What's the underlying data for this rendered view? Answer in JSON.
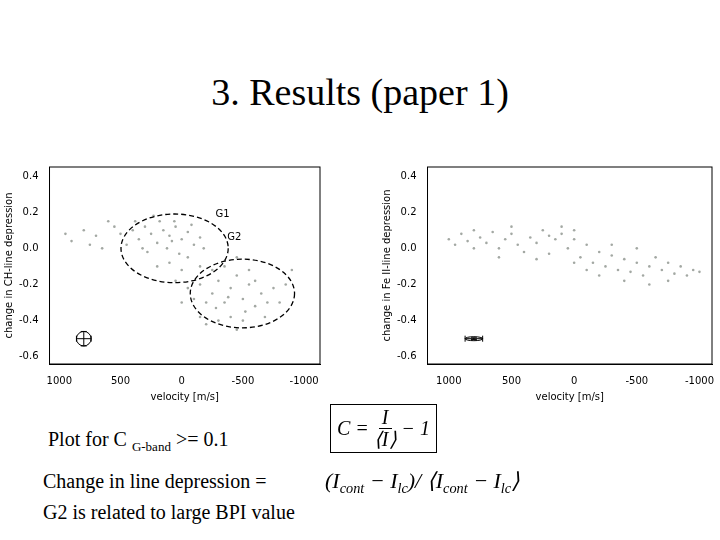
{
  "title": "3. Results (paper 1)",
  "chart_data": [
    {
      "type": "scatter",
      "x_label": "velocity [m/s]",
      "y_label": "change in CH-line depression",
      "color": "#a3a8a3",
      "marker": "dot",
      "grid": false,
      "xlim": [
        1080,
        -1130
      ],
      "ylim": [
        -0.64,
        0.45
      ],
      "xticks": [
        1000,
        500,
        0,
        -500,
        -1000
      ],
      "yticks": [
        -0.6,
        -0.4,
        -0.2,
        {
          "value": 0,
          "label": "0.0"
        },
        0.2,
        0.4
      ],
      "x": [
        400,
        350,
        300,
        250,
        200,
        150,
        100,
        50,
        0,
        -50,
        -100,
        -150,
        450,
        380,
        280,
        180,
        120,
        60,
        20,
        -80,
        500,
        550,
        230,
        320,
        -180,
        80,
        700,
        800,
        900,
        950,
        650,
        750,
        600,
        100,
        0,
        -50,
        200,
        -150,
        50,
        -400,
        -350,
        -450,
        -300,
        -500,
        -250,
        -550,
        -600,
        -200,
        -400,
        -300,
        -500,
        -650,
        -700,
        -150,
        -100,
        -350,
        -450,
        -550,
        -250,
        -600,
        -750,
        -800,
        -850,
        -200,
        -450,
        -380,
        -520,
        -280,
        -680,
        -150,
        -50,
        0,
        -900
      ],
      "values": [
        0.1,
        0.05,
        0.12,
        0.08,
        0.03,
        0.1,
        0.07,
        0.12,
        0.05,
        0.09,
        0.02,
        0.06,
        0.02,
        0.15,
        -0.02,
        0.15,
        0.0,
        0.15,
        -0.03,
        0.13,
        0.08,
        0.12,
        0.18,
        0.0,
        0.0,
        0.04,
        0.07,
        0.1,
        0.04,
        0.08,
        0.0,
        0.02,
        0.15,
        -0.08,
        -0.12,
        -0.05,
        -0.1,
        -0.1,
        -0.18,
        -0.22,
        -0.3,
        -0.15,
        -0.18,
        -0.28,
        -0.25,
        -0.2,
        -0.32,
        -0.3,
        -0.38,
        -0.4,
        -0.4,
        -0.25,
        -0.3,
        -0.2,
        -0.28,
        -0.1,
        -0.05,
        -0.12,
        -0.12,
        -0.18,
        -0.22,
        -0.3,
        -0.2,
        -0.42,
        -0.45,
        -0.27,
        -0.35,
        -0.33,
        -0.38,
        -0.38,
        -0.22,
        -0.3,
        -0.12
      ],
      "annotations": [
        {
          "shape": "ellipse",
          "label": "G1",
          "center": [
            58,
            0.0
          ],
          "radii": [
            438,
            0.19
          ],
          "label_at": [
            -333,
            0.19
          ],
          "line_style": "dashed"
        },
        {
          "shape": "ellipse",
          "label": "G2",
          "center": [
            -496,
            -0.25
          ],
          "radii": [
            426,
            0.19
          ],
          "label_at": [
            -430,
            0.06
          ],
          "line_style": "dashed"
        }
      ],
      "error_marker": {
        "x": 800,
        "y": -0.5,
        "x_error": 60,
        "y_error": 0.04
      }
    },
    {
      "type": "scatter",
      "x_label": "velocity [m/s]",
      "y_label": "change in Fe II-line depression",
      "color": "#a3a8a3",
      "marker": "dot",
      "grid": false,
      "xlim": [
        1170,
        -1100
      ],
      "ylim": [
        -0.64,
        0.45
      ],
      "xticks": [
        1000,
        500,
        0,
        -500,
        -1000
      ],
      "yticks": [
        -0.6,
        -0.4,
        -0.2,
        {
          "value": 0,
          "label": "0.0"
        },
        0.2,
        0.4
      ],
      "x": [
        1000,
        950,
        900,
        850,
        800,
        750,
        700,
        650,
        600,
        550,
        500,
        450,
        400,
        350,
        300,
        250,
        200,
        150,
        100,
        50,
        0,
        -50,
        -100,
        -150,
        -200,
        -250,
        -300,
        -350,
        -400,
        -450,
        -500,
        -550,
        -600,
        -650,
        -700,
        -750,
        -800,
        -850,
        -900,
        -950,
        -1000,
        600,
        300,
        0,
        -200,
        -400,
        100,
        -300,
        500,
        800,
        -600,
        0,
        -100,
        200,
        -500,
        -750
      ],
      "values": [
        0.05,
        0.02,
        0.08,
        0.04,
        0.0,
        0.06,
        0.03,
        0.09,
        0.0,
        0.05,
        0.08,
        0.02,
        -0.02,
        0.06,
        0.03,
        0.1,
        -0.03,
        0.05,
        0.08,
        0.0,
        0.05,
        -0.05,
        0.02,
        -0.08,
        -0.02,
        -0.1,
        -0.04,
        -0.12,
        -0.06,
        -0.13,
        -0.08,
        -0.15,
        -0.1,
        -0.05,
        -0.12,
        -0.08,
        -0.14,
        -0.1,
        -0.15,
        -0.12,
        -0.13,
        -0.05,
        -0.06,
        -0.08,
        -0.15,
        -0.18,
        0.12,
        0.02,
        0.12,
        0.1,
        -0.2,
        0.1,
        -0.12,
        0.07,
        0.0,
        -0.18
      ],
      "error_marker": {
        "x": 800,
        "y": -0.5,
        "x_error": 70,
        "y_error": 0.005
      }
    }
  ],
  "text": {
    "plot_condition": [
      {
        "t": "Plot for C "
      },
      {
        "sub": "G-band"
      },
      {
        "t": " >= 0.1"
      }
    ],
    "formula_C": {
      "lhs": "C =",
      "numerator": "I",
      "denominator": "⟨I⟩",
      "rest": "− 1"
    },
    "line_depression_label": "Change in line depression =",
    "line_depression_formula": [
      {
        "t": "(I"
      },
      {
        "sub": "cont"
      },
      {
        "t": " − I"
      },
      {
        "sub": "lc"
      },
      {
        "t": ")/ ⟨I"
      },
      {
        "sub": "cont"
      },
      {
        "t": " − I"
      },
      {
        "sub": "lc"
      },
      {
        "t": "⟩"
      }
    ],
    "note": "G2 is related to large BPI value"
  }
}
